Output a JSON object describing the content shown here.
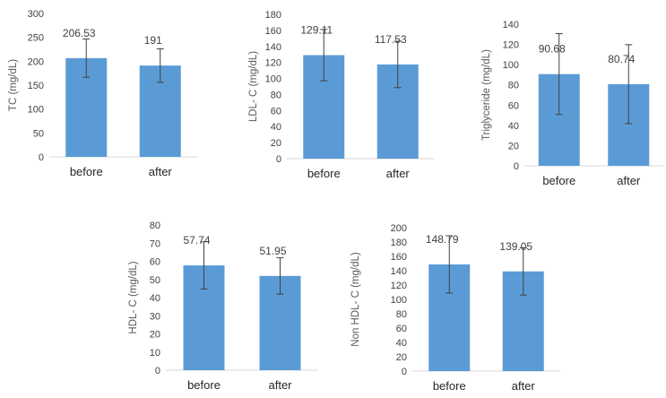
{
  "chart_data": [
    {
      "type": "bar",
      "categories": [
        "before",
        "after"
      ],
      "values": [
        206.53,
        191
      ],
      "errors": [
        40,
        35
      ],
      "data_labels": [
        "206.53",
        "191"
      ],
      "ylabel": "TC (mg/dL)",
      "ylim": [
        0,
        300
      ],
      "yticks": [
        0,
        50,
        100,
        150,
        200,
        250,
        300
      ],
      "grid": false,
      "bar_color": "#5b9bd5"
    },
    {
      "type": "bar",
      "categories": [
        "before",
        "after"
      ],
      "values": [
        129.11,
        117.53
      ],
      "errors": [
        32,
        29
      ],
      "data_labels": [
        "129.11",
        "117.53"
      ],
      "ylabel": "LDL- C (mg/dL)",
      "ylim": [
        0,
        180
      ],
      "yticks": [
        0,
        20,
        40,
        60,
        80,
        100,
        120,
        140,
        160,
        180
      ],
      "grid": false,
      "bar_color": "#5b9bd5"
    },
    {
      "type": "bar",
      "categories": [
        "before",
        "after"
      ],
      "values": [
        90.68,
        80.74
      ],
      "errors": [
        40,
        39
      ],
      "data_labels": [
        "90.68",
        "80.74"
      ],
      "ylabel": "Triglyceride (mg/dL)",
      "ylim": [
        0,
        140
      ],
      "yticks": [
        0,
        20,
        40,
        60,
        80,
        100,
        120,
        140
      ],
      "grid": false,
      "bar_color": "#5b9bd5"
    },
    {
      "type": "bar",
      "categories": [
        "before",
        "after"
      ],
      "values": [
        57.74,
        51.95
      ],
      "errors": [
        13,
        10
      ],
      "data_labels": [
        "57.74",
        "51.95"
      ],
      "ylabel": "HDL- C (mg/dL)",
      "ylim": [
        0,
        80
      ],
      "yticks": [
        0,
        10,
        20,
        30,
        40,
        50,
        60,
        70,
        80
      ],
      "grid": false,
      "bar_color": "#5b9bd5"
    },
    {
      "type": "bar",
      "categories": [
        "before",
        "after"
      ],
      "values": [
        148.79,
        139.05
      ],
      "errors": [
        40,
        33
      ],
      "data_labels": [
        "148.79",
        "139.05"
      ],
      "ylabel": "Non HDL- C (mg/dL)",
      "ylim": [
        0,
        200
      ],
      "yticks": [
        0,
        20,
        40,
        60,
        80,
        100,
        120,
        140,
        160,
        180,
        200
      ],
      "grid": false,
      "bar_color": "#5b9bd5"
    }
  ]
}
